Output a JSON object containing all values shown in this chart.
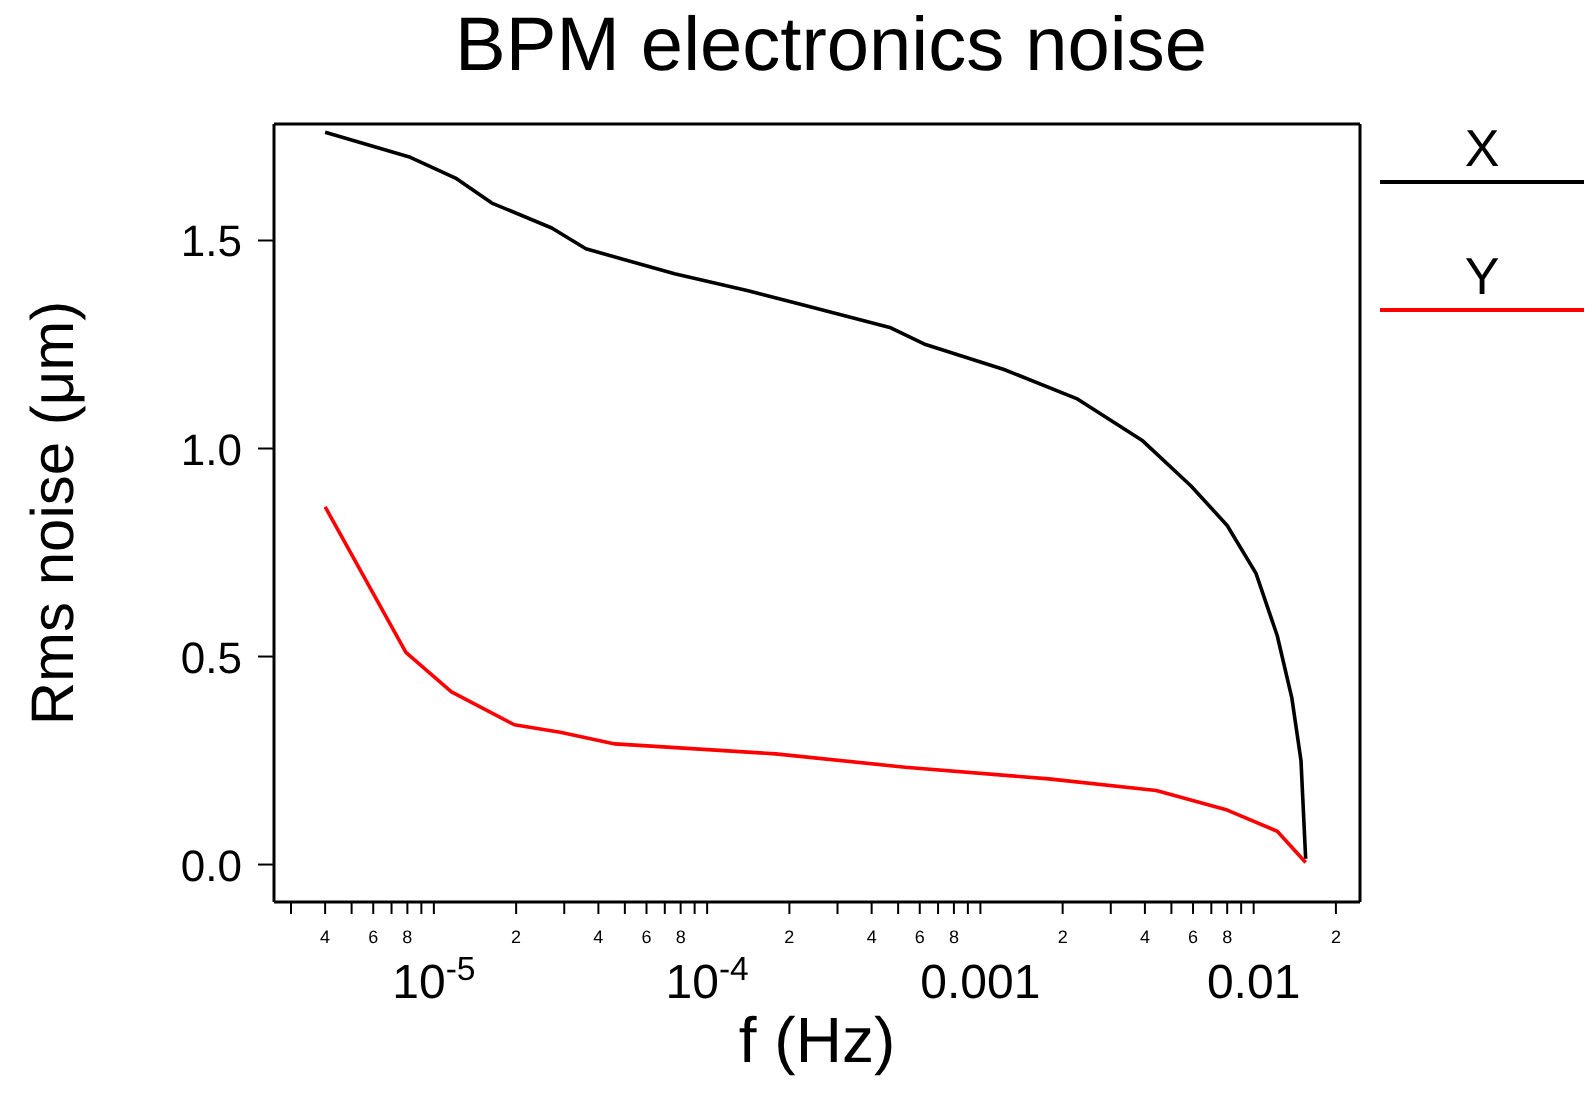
{
  "chart_data": {
    "type": "line",
    "title": "BPM electronics noise",
    "xlabel": "f (Hz)",
    "ylabel": "Rms noise (μm)",
    "log": "x",
    "legend": "right",
    "grid": false,
    "marker": "none",
    "xlim": [
      2.6e-06,
      0.0245
    ],
    "ylim": [
      -0.09,
      1.78
    ],
    "xticks": [
      {
        "value": 3e-06,
        "label": null
      },
      {
        "value": 4e-06,
        "label": null
      },
      {
        "value": 5e-06,
        "label": null
      },
      {
        "value": 6e-06,
        "label": null
      },
      {
        "value": 7e-06,
        "label": null
      },
      {
        "value": 8e-06,
        "label": null
      },
      {
        "value": 9e-06,
        "label": null
      },
      {
        "value": 1e-05,
        "label": "10$^{-5}$"
      },
      {
        "value": 2e-05,
        "label": null
      },
      {
        "value": 3e-05,
        "label": null
      },
      {
        "value": 4e-05,
        "label": null
      },
      {
        "value": 5e-05,
        "label": null
      },
      {
        "value": 6e-05,
        "label": null
      },
      {
        "value": 7e-05,
        "label": null
      },
      {
        "value": 8e-05,
        "label": null
      },
      {
        "value": 9e-05,
        "label": null
      },
      {
        "value": 0.0001,
        "label": "10$^{-4}$"
      },
      {
        "value": 0.0002,
        "label": null
      },
      {
        "value": 0.0003,
        "label": null
      },
      {
        "value": 0.0004,
        "label": null
      },
      {
        "value": 0.0005,
        "label": null
      },
      {
        "value": 0.0006,
        "label": null
      },
      {
        "value": 0.0007,
        "label": null
      },
      {
        "value": 0.0008,
        "label": null
      },
      {
        "value": 0.0009,
        "label": null
      },
      {
        "value": 0.001,
        "label": "0.001"
      },
      {
        "value": 0.002,
        "label": null
      },
      {
        "value": 0.003,
        "label": null
      },
      {
        "value": 0.004,
        "label": null
      },
      {
        "value": 0.005,
        "label": null
      },
      {
        "value": 0.006,
        "label": null
      },
      {
        "value": 0.007,
        "label": null
      },
      {
        "value": 0.008,
        "label": null
      },
      {
        "value": 0.009,
        "label": null
      },
      {
        "value": 0.01,
        "label": "0.01"
      },
      {
        "value": 0.02,
        "label": null
      }
    ],
    "annotations": [
      "4",
      "6",
      "8",
      "2",
      "4",
      "6",
      "8",
      "2",
      "4",
      "6",
      "8",
      "2",
      "4",
      "6",
      "8",
      "2"
    ],
    "yticks": [
      {
        "value": 0,
        "label": "0.0"
      },
      {
        "value": 0.5,
        "label": "0.5"
      },
      {
        "value": 1,
        "label": "1.0"
      },
      {
        "value": 1.5,
        "label": "1.5"
      }
    ],
    "series": [
      {
        "name": "X",
        "color": "#000000",
        "x": [
          4e-06,
          8.2e-06,
          1.2e-05,
          1.63e-05,
          2.7e-05,
          3.6e-05,
          7.6e-05,
          0.00014,
          0.000225,
          0.00047,
          0.00063,
          0.00122,
          0.00225,
          0.0039,
          0.0059,
          0.008,
          0.0102,
          0.0122,
          0.0138,
          0.0149,
          0.0155
        ],
        "values": [
          1.76,
          1.7,
          1.65,
          1.59,
          1.53,
          1.48,
          1.42,
          1.38,
          1.345,
          1.29,
          1.25,
          1.19,
          1.12,
          1.02,
          0.91,
          0.815,
          0.7,
          0.55,
          0.4,
          0.25,
          0.014
        ]
      },
      {
        "name": "Y",
        "color": "#ff0000",
        "x": [
          4e-06,
          7.9e-06,
          1.16e-05,
          1.97e-05,
          2.9e-05,
          4.6e-05,
          0.000178,
          0.00053,
          0.00178,
          0.0044,
          0.008,
          0.0122,
          0.0155
        ],
        "values": [
          0.86,
          0.51,
          0.415,
          0.336,
          0.318,
          0.29,
          0.266,
          0.234,
          0.206,
          0.178,
          0.131,
          0.08,
          0.005
        ]
      }
    ]
  }
}
